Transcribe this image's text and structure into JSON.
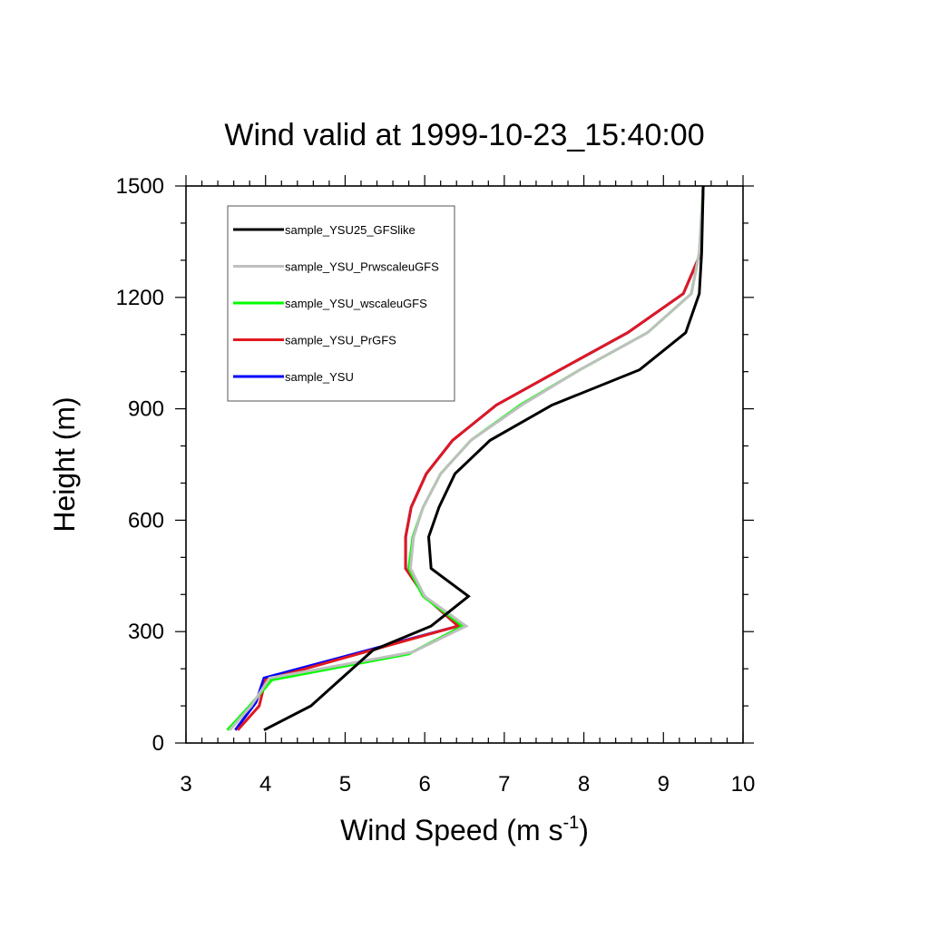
{
  "chart_data": {
    "type": "line",
    "title": "Wind valid at 1999-10-23_15:40:00",
    "xlabel": "Wind Speed (m s",
    "xlabel_sup": "-1",
    "xlabel_end": ")",
    "ylabel": "Height (m)",
    "xlim": [
      3,
      10
    ],
    "ylim": [
      0,
      1500
    ],
    "xticks": [
      3,
      4,
      5,
      6,
      7,
      8,
      9,
      10
    ],
    "yticks": [
      0,
      300,
      600,
      900,
      1200,
      1500
    ],
    "x_minor_step": 0.2,
    "y_minor_step": 100,
    "grid": false,
    "legend_position": "top-left",
    "series": [
      {
        "name": "sample_YSU25_GFSlike",
        "color": "#000000",
        "points": [
          [
            3.98,
            35
          ],
          [
            4.57,
            100
          ],
          [
            5.35,
            250
          ],
          [
            6.08,
            315
          ],
          [
            6.55,
            395
          ],
          [
            6.08,
            470
          ],
          [
            6.05,
            555
          ],
          [
            6.18,
            635
          ],
          [
            6.38,
            725
          ],
          [
            6.82,
            815
          ],
          [
            7.6,
            910
          ],
          [
            8.7,
            1005
          ],
          [
            9.28,
            1105
          ],
          [
            9.45,
            1210
          ],
          [
            9.48,
            1320
          ],
          [
            9.5,
            1500
          ]
        ]
      },
      {
        "name": "sample_YSU_PrwscaleuGFS",
        "color": "#bfbfbf",
        "points": [
          [
            3.55,
            35
          ],
          [
            3.82,
            100
          ],
          [
            4.05,
            175
          ],
          [
            5.85,
            245
          ],
          [
            6.52,
            315
          ],
          [
            6.0,
            395
          ],
          [
            5.82,
            470
          ],
          [
            5.86,
            555
          ],
          [
            5.98,
            635
          ],
          [
            6.2,
            725
          ],
          [
            6.58,
            815
          ],
          [
            7.22,
            910
          ],
          [
            7.95,
            1005
          ],
          [
            8.8,
            1105
          ],
          [
            9.35,
            1210
          ],
          [
            9.45,
            1320
          ],
          [
            9.5,
            1500
          ]
        ]
      },
      {
        "name": "sample_YSU_wscaleuGFS",
        "color": "#00ff00",
        "points": [
          [
            3.52,
            35
          ],
          [
            3.8,
            100
          ],
          [
            4.08,
            170
          ],
          [
            5.8,
            240
          ],
          [
            6.48,
            315
          ],
          [
            5.98,
            395
          ],
          [
            5.8,
            470
          ],
          [
            5.85,
            555
          ],
          [
            5.98,
            635
          ],
          [
            6.2,
            725
          ],
          [
            6.58,
            815
          ],
          [
            7.2,
            910
          ],
          [
            7.95,
            1005
          ],
          [
            8.8,
            1105
          ],
          [
            9.35,
            1210
          ],
          [
            9.45,
            1320
          ],
          [
            9.5,
            1500
          ]
        ]
      },
      {
        "name": "sample_YSU_PrGFS",
        "color": "#e0181e",
        "points": [
          [
            3.65,
            35
          ],
          [
            3.92,
            100
          ],
          [
            4.0,
            170
          ],
          [
            6.42,
            315
          ],
          [
            6.0,
            395
          ],
          [
            5.76,
            470
          ],
          [
            5.76,
            555
          ],
          [
            5.83,
            635
          ],
          [
            6.02,
            725
          ],
          [
            6.35,
            815
          ],
          [
            6.9,
            910
          ],
          [
            7.7,
            1005
          ],
          [
            8.55,
            1105
          ],
          [
            9.25,
            1210
          ],
          [
            9.47,
            1320
          ],
          [
            9.5,
            1500
          ]
        ]
      },
      {
        "name": "sample_YSU",
        "color": "#0000ff",
        "points": [
          [
            3.62,
            35
          ],
          [
            3.88,
            110
          ],
          [
            3.98,
            175
          ],
          [
            6.42,
            315
          ],
          [
            6.0,
            395
          ],
          [
            5.76,
            470
          ],
          [
            5.76,
            555
          ],
          [
            5.83,
            635
          ],
          [
            6.02,
            725
          ],
          [
            6.35,
            815
          ],
          [
            6.9,
            910
          ],
          [
            7.7,
            1005
          ],
          [
            8.55,
            1105
          ],
          [
            9.25,
            1210
          ],
          [
            9.47,
            1320
          ],
          [
            9.5,
            1500
          ]
        ]
      }
    ]
  }
}
